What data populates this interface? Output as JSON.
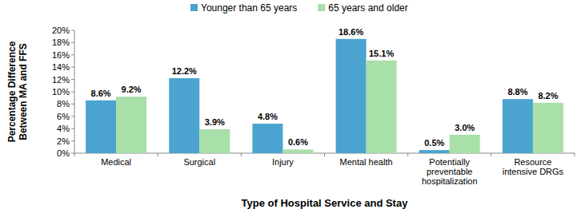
{
  "chart_data": {
    "type": "bar",
    "x_label": "Type of Hospital Service and Stay",
    "y_label": "Percentage Difference Between MA and FFS",
    "categories": [
      "Medical",
      "Surgical",
      "Injury",
      "Mental health",
      "Potentially preventable hospitalization",
      "Resource intensive DRGs"
    ],
    "series": [
      {
        "name": "Younger than 65 years",
        "color": "#4ba3cf",
        "values": [
          8.6,
          12.2,
          4.8,
          18.6,
          0.5,
          8.8
        ],
        "value_labels": [
          "8.6%",
          "12.2%",
          "4.8%",
          "18.6%",
          "0.5%",
          "8.8%"
        ]
      },
      {
        "name": "65 years and older",
        "color": "#a9dfa9",
        "values": [
          9.2,
          3.9,
          0.6,
          15.1,
          3.0,
          8.2
        ],
        "value_labels": [
          "9.2%",
          "3.9%",
          "0.6%",
          "15.1%",
          "3.0%",
          "8.2%"
        ]
      }
    ],
    "ylim": [
      0,
      20
    ],
    "yticks": [
      {
        "value": 0,
        "label": "0%"
      },
      {
        "value": 2,
        "label": "2%"
      },
      {
        "value": 4,
        "label": "4%"
      },
      {
        "value": 6,
        "label": "6%"
      },
      {
        "value": 8,
        "label": "8%"
      },
      {
        "value": 10,
        "label": "10%"
      },
      {
        "value": 12,
        "label": "12%"
      },
      {
        "value": 14,
        "label": "14%"
      },
      {
        "value": 16,
        "label": "16%"
      },
      {
        "value": 18,
        "label": "18%"
      },
      {
        "value": 20,
        "label": "20%"
      }
    ],
    "grid": false,
    "legend": "top",
    "data_labels": true
  }
}
